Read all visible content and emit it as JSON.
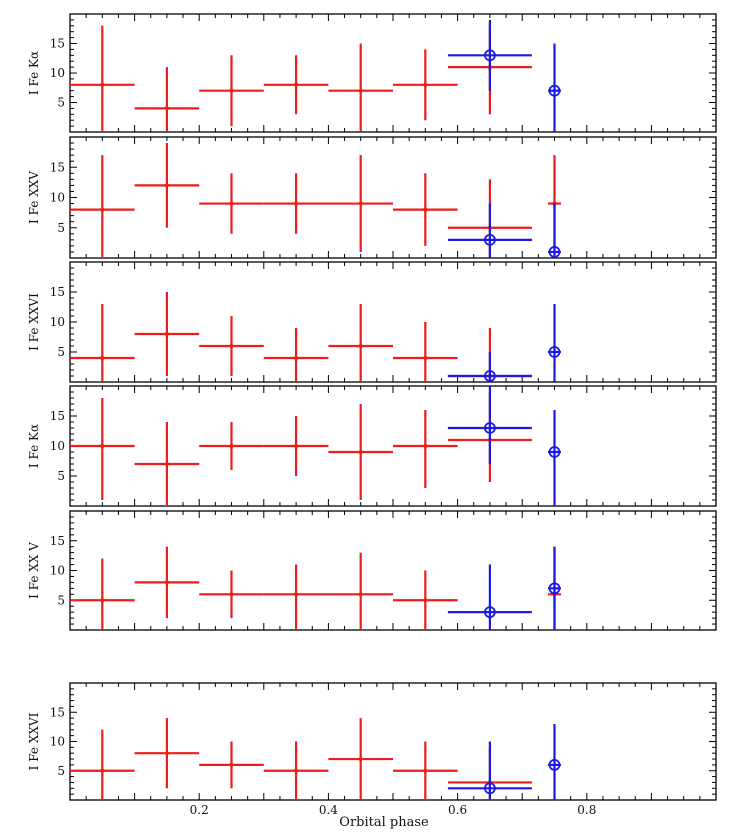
{
  "chart_data": {
    "type": "scatter",
    "xlabel": "Orbital phase",
    "xlim": [
      0,
      1
    ],
    "x_ticks": [
      0.2,
      0.4,
      0.6,
      0.8
    ],
    "x_tick_labels": [
      "0.2",
      "0.4",
      "0.6",
      "0.8"
    ],
    "x_minor_step": 0.025,
    "colors": {
      "red": "#ee1c1c",
      "blue": "#1a1ae6"
    },
    "panels": [
      {
        "id": "p1",
        "ylabel": "I Fe Kα",
        "ylim": [
          0,
          20
        ],
        "y_ticks": [
          5,
          10,
          15
        ],
        "y_tick_labels": [
          "5",
          "10",
          "15"
        ],
        "series": [
          {
            "name": "red",
            "color": "#ee1c1c",
            "points": [
              {
                "x": 0.05,
                "xerr": 0.05,
                "y": 8,
                "ylo": 0,
                "yhi": 18
              },
              {
                "x": 0.15,
                "xerr": 0.05,
                "y": 4,
                "ylo": 0,
                "yhi": 11
              },
              {
                "x": 0.25,
                "xerr": 0.05,
                "y": 7,
                "ylo": 1,
                "yhi": 13
              },
              {
                "x": 0.35,
                "xerr": 0.05,
                "y": 8,
                "ylo": 3,
                "yhi": 13
              },
              {
                "x": 0.45,
                "xerr": 0.05,
                "y": 7,
                "ylo": 0,
                "yhi": 15
              },
              {
                "x": 0.55,
                "xerr": 0.05,
                "y": 8,
                "ylo": 2,
                "yhi": 14
              },
              {
                "x": 0.65,
                "xerr": 0.065,
                "y": 11,
                "ylo": 3,
                "yhi": 18
              }
            ]
          },
          {
            "name": "blue",
            "color": "#1a1ae6",
            "points": [
              {
                "x": 0.65,
                "xerr": 0.065,
                "y": 13,
                "ylo": 7,
                "yhi": 19
              },
              {
                "x": 0.75,
                "xerr": 0.01,
                "y": 7,
                "ylo": 0,
                "yhi": 15
              }
            ]
          }
        ]
      },
      {
        "id": "p2",
        "ylabel": "I Fe XXV",
        "ylim": [
          0,
          20
        ],
        "y_ticks": [
          5,
          10,
          15
        ],
        "y_tick_labels": [
          "5",
          "10",
          "15"
        ],
        "series": [
          {
            "name": "red",
            "color": "#ee1c1c",
            "points": [
              {
                "x": 0.05,
                "xerr": 0.05,
                "y": 8,
                "ylo": 0,
                "yhi": 17
              },
              {
                "x": 0.15,
                "xerr": 0.05,
                "y": 12,
                "ylo": 5,
                "yhi": 19
              },
              {
                "x": 0.25,
                "xerr": 0.05,
                "y": 9,
                "ylo": 4,
                "yhi": 14
              },
              {
                "x": 0.35,
                "xerr": 0.05,
                "y": 9,
                "ylo": 4,
                "yhi": 14
              },
              {
                "x": 0.45,
                "xerr": 0.05,
                "y": 9,
                "ylo": 1,
                "yhi": 17
              },
              {
                "x": 0.55,
                "xerr": 0.05,
                "y": 8,
                "ylo": 2,
                "yhi": 14
              },
              {
                "x": 0.65,
                "xerr": 0.065,
                "y": 5,
                "ylo": 0,
                "yhi": 13
              },
              {
                "x": 0.75,
                "xerr": 0.01,
                "y": 9,
                "ylo": 0,
                "yhi": 17
              }
            ]
          },
          {
            "name": "blue",
            "color": "#1a1ae6",
            "points": [
              {
                "x": 0.65,
                "xerr": 0.065,
                "y": 3,
                "ylo": 0,
                "yhi": 9
              },
              {
                "x": 0.75,
                "xerr": 0.01,
                "y": 1,
                "ylo": 0,
                "yhi": 9
              }
            ]
          }
        ]
      },
      {
        "id": "p3",
        "ylabel": "I Fe XXVI",
        "ylim": [
          0,
          20
        ],
        "y_ticks": [
          5,
          10,
          15
        ],
        "y_tick_labels": [
          "5",
          "10",
          "15"
        ],
        "series": [
          {
            "name": "red",
            "color": "#ee1c1c",
            "points": [
              {
                "x": 0.05,
                "xerr": 0.05,
                "y": 4,
                "ylo": 0,
                "yhi": 13
              },
              {
                "x": 0.15,
                "xerr": 0.05,
                "y": 8,
                "ylo": 1,
                "yhi": 15
              },
              {
                "x": 0.25,
                "xerr": 0.05,
                "y": 6,
                "ylo": 1,
                "yhi": 11
              },
              {
                "x": 0.35,
                "xerr": 0.05,
                "y": 4,
                "ylo": 0,
                "yhi": 9
              },
              {
                "x": 0.45,
                "xerr": 0.05,
                "y": 6,
                "ylo": 0,
                "yhi": 13
              },
              {
                "x": 0.55,
                "xerr": 0.05,
                "y": 4,
                "ylo": 0,
                "yhi": 10
              },
              {
                "x": 0.65,
                "xerr": 0.065,
                "y": 1,
                "ylo": 0,
                "yhi": 9
              }
            ]
          },
          {
            "name": "blue",
            "color": "#1a1ae6",
            "points": [
              {
                "x": 0.65,
                "xerr": 0.065,
                "y": 1,
                "ylo": 0,
                "yhi": 5
              },
              {
                "x": 0.75,
                "xerr": 0.01,
                "y": 5,
                "ylo": 0,
                "yhi": 13
              }
            ]
          }
        ]
      },
      {
        "id": "p4",
        "ylabel": "I Fe Kα",
        "ylim": [
          0,
          20
        ],
        "y_ticks": [
          5,
          10,
          15
        ],
        "y_tick_labels": [
          "5",
          "10",
          "15"
        ],
        "series": [
          {
            "name": "red",
            "color": "#ee1c1c",
            "points": [
              {
                "x": 0.05,
                "xerr": 0.05,
                "y": 10,
                "ylo": 1,
                "yhi": 18
              },
              {
                "x": 0.15,
                "xerr": 0.05,
                "y": 7,
                "ylo": 0,
                "yhi": 14
              },
              {
                "x": 0.25,
                "xerr": 0.05,
                "y": 10,
                "ylo": 6,
                "yhi": 14
              },
              {
                "x": 0.35,
                "xerr": 0.05,
                "y": 10,
                "ylo": 5,
                "yhi": 15
              },
              {
                "x": 0.45,
                "xerr": 0.05,
                "y": 9,
                "ylo": 1,
                "yhi": 17
              },
              {
                "x": 0.55,
                "xerr": 0.05,
                "y": 10,
                "ylo": 3,
                "yhi": 16
              },
              {
                "x": 0.65,
                "xerr": 0.065,
                "y": 11,
                "ylo": 4,
                "yhi": 19
              }
            ]
          },
          {
            "name": "blue",
            "color": "#1a1ae6",
            "points": [
              {
                "x": 0.65,
                "xerr": 0.065,
                "y": 13,
                "ylo": 7,
                "yhi": 20
              },
              {
                "x": 0.75,
                "xerr": 0.01,
                "y": 9,
                "ylo": 0,
                "yhi": 16
              }
            ]
          }
        ]
      },
      {
        "id": "p5",
        "ylabel": "I Fe XX V",
        "ylim": [
          0,
          20
        ],
        "y_ticks": [
          5,
          10,
          15
        ],
        "y_tick_labels": [
          "5",
          "10",
          "15"
        ],
        "series": [
          {
            "name": "red",
            "color": "#ee1c1c",
            "points": [
              {
                "x": 0.05,
                "xerr": 0.05,
                "y": 5,
                "ylo": 0,
                "yhi": 12
              },
              {
                "x": 0.15,
                "xerr": 0.05,
                "y": 8,
                "ylo": 2,
                "yhi": 14
              },
              {
                "x": 0.25,
                "xerr": 0.05,
                "y": 6,
                "ylo": 2,
                "yhi": 10
              },
              {
                "x": 0.35,
                "xerr": 0.05,
                "y": 6,
                "ylo": 0,
                "yhi": 11
              },
              {
                "x": 0.45,
                "xerr": 0.05,
                "y": 6,
                "ylo": 0,
                "yhi": 13
              },
              {
                "x": 0.55,
                "xerr": 0.05,
                "y": 5,
                "ylo": 0,
                "yhi": 10
              },
              {
                "x": 0.75,
                "xerr": 0.01,
                "y": 6,
                "ylo": 0,
                "yhi": 14
              }
            ]
          },
          {
            "name": "blue",
            "color": "#1a1ae6",
            "points": [
              {
                "x": 0.65,
                "xerr": 0.065,
                "y": 3,
                "ylo": 0,
                "yhi": 11
              },
              {
                "x": 0.75,
                "xerr": 0.01,
                "y": 7,
                "ylo": 0,
                "yhi": 14
              }
            ]
          }
        ]
      },
      {
        "id": "p6",
        "ylabel": "I Fe XXVI",
        "ylim": [
          0,
          20
        ],
        "y_ticks": [
          5,
          10,
          15
        ],
        "y_tick_labels": [
          "5",
          "10",
          "15"
        ],
        "series": [
          {
            "name": "red",
            "color": "#ee1c1c",
            "points": [
              {
                "x": 0.05,
                "xerr": 0.05,
                "y": 5,
                "ylo": 0,
                "yhi": 12
              },
              {
                "x": 0.15,
                "xerr": 0.05,
                "y": 8,
                "ylo": 2,
                "yhi": 14
              },
              {
                "x": 0.25,
                "xerr": 0.05,
                "y": 6,
                "ylo": 2,
                "yhi": 10
              },
              {
                "x": 0.35,
                "xerr": 0.05,
                "y": 5,
                "ylo": 0,
                "yhi": 10
              },
              {
                "x": 0.45,
                "xerr": 0.05,
                "y": 7,
                "ylo": 0,
                "yhi": 14
              },
              {
                "x": 0.55,
                "xerr": 0.05,
                "y": 5,
                "ylo": 0,
                "yhi": 10
              },
              {
                "x": 0.65,
                "xerr": 0.065,
                "y": 3,
                "ylo": 0,
                "yhi": 9
              }
            ]
          },
          {
            "name": "blue",
            "color": "#1a1ae6",
            "points": [
              {
                "x": 0.65,
                "xerr": 0.065,
                "y": 2,
                "ylo": 0,
                "yhi": 10
              },
              {
                "x": 0.75,
                "xerr": 0.01,
                "y": 6,
                "ylo": 0,
                "yhi": 13
              }
            ]
          }
        ]
      }
    ]
  }
}
